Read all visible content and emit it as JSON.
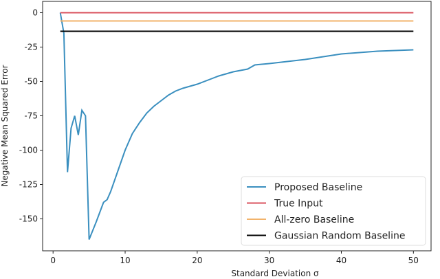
{
  "chart_data": {
    "type": "line",
    "xlabel": "Standard Deviation σ",
    "ylabel": "Negative Mean Squared Error",
    "xlim": [
      -1.45,
      52.45
    ],
    "xticks": [
      0,
      10,
      20,
      30,
      40,
      50
    ],
    "ylim": [
      -173.25,
      8.25
    ],
    "yticks": [
      0,
      -25,
      -50,
      -75,
      -100,
      -125,
      -150
    ],
    "legend": "lower right",
    "series": [
      {
        "name": "Proposed Baseline",
        "color": "#3a8fbf",
        "x": [
          1,
          1.5,
          2,
          2.5,
          3,
          3.5,
          4,
          4.5,
          5,
          6,
          7,
          7.5,
          8,
          9,
          10,
          11,
          12,
          13,
          14,
          15,
          16,
          17,
          18,
          20,
          22,
          23,
          25,
          27,
          28,
          30,
          35,
          40,
          45,
          50
        ],
        "values": [
          0,
          -15,
          -116,
          -84,
          -75,
          -89,
          -71,
          -75,
          -165,
          -152,
          -138,
          -136,
          -130,
          -115,
          -100,
          -88,
          -80,
          -73,
          -68,
          -64,
          -60,
          -57,
          -55,
          -52,
          -48,
          -46,
          -43,
          -41,
          -38,
          -37,
          -34,
          -30,
          -28,
          -27
        ]
      },
      {
        "name": "True Input",
        "color": "#d9505c",
        "x": [
          1,
          50
        ],
        "values": [
          0,
          0
        ]
      },
      {
        "name": "All-zero Baseline",
        "color": "#f2b36b",
        "x": [
          1,
          50
        ],
        "values": [
          -6,
          -6
        ]
      },
      {
        "name": "Gaussian Random Baseline",
        "color": "#000000",
        "x": [
          1,
          50
        ],
        "values": [
          -13.5,
          -13.5
        ]
      }
    ]
  }
}
